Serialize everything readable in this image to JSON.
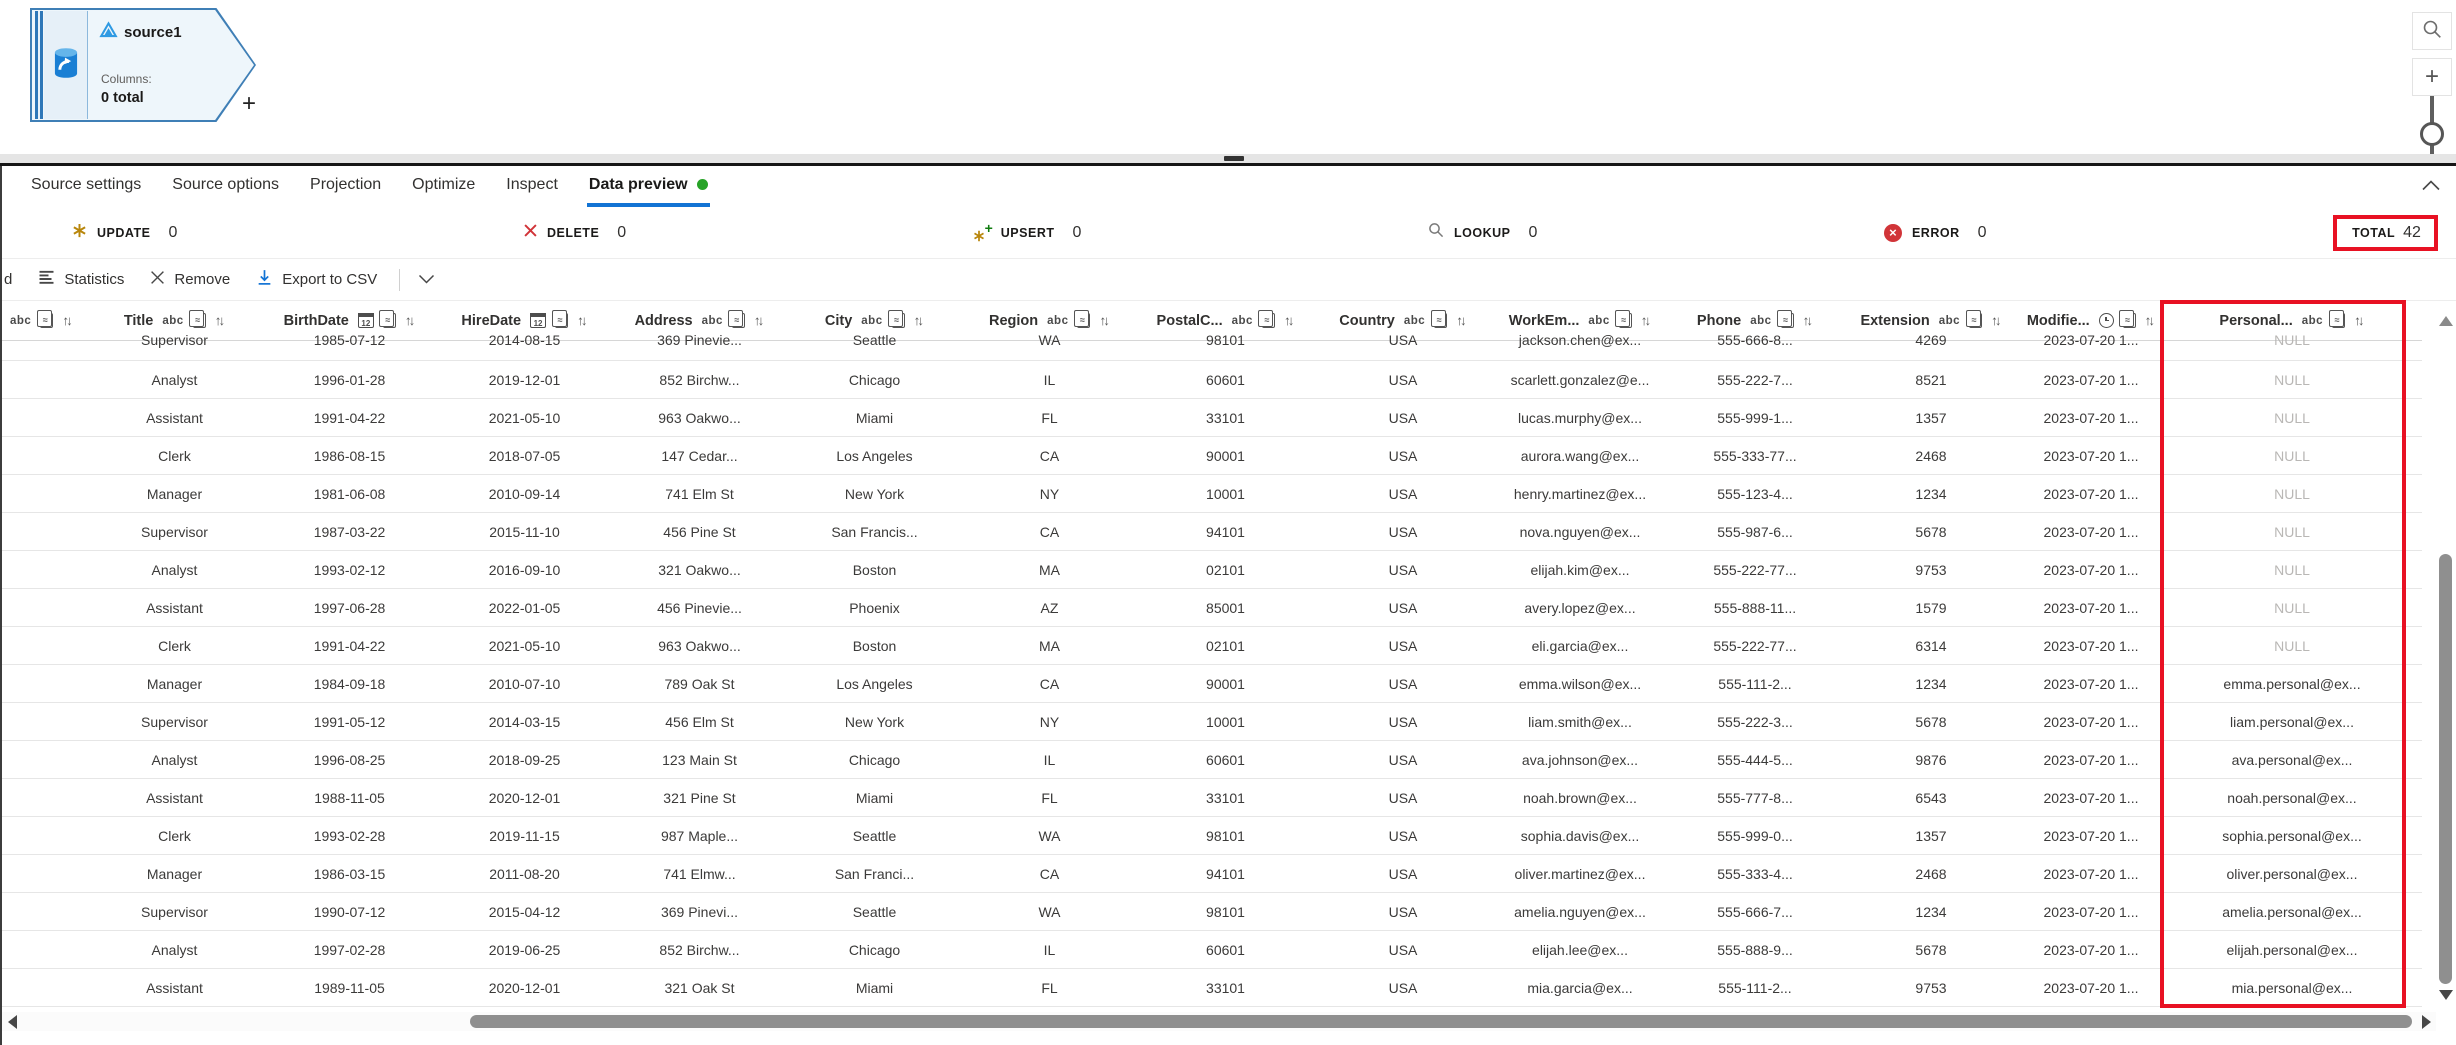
{
  "canvas": {
    "node": {
      "title": "source1",
      "columns_label": "Columns:",
      "columns_total": "0 total",
      "add_button": "+"
    }
  },
  "tabs": {
    "items": [
      {
        "label": "Source settings",
        "active": false
      },
      {
        "label": "Source options",
        "active": false
      },
      {
        "label": "Projection",
        "active": false
      },
      {
        "label": "Optimize",
        "active": false
      },
      {
        "label": "Inspect",
        "active": false
      },
      {
        "label": "Data preview",
        "active": true,
        "has_status_dot": true
      }
    ]
  },
  "stats": {
    "items": [
      {
        "icon": "update-asterisk-icon",
        "label": "UPDATE",
        "value": "0"
      },
      {
        "icon": "delete-x-icon",
        "label": "DELETE",
        "value": "0"
      },
      {
        "icon": "upsert-asterisk-plus-icon",
        "label": "UPSERT",
        "value": "0"
      },
      {
        "icon": "lookup-magnifier-icon",
        "label": "LOOKUP",
        "value": "0"
      },
      {
        "icon": "error-circle-icon",
        "label": "ERROR",
        "value": "0"
      }
    ],
    "total": {
      "label": "TOTAL",
      "value": "42",
      "annotated": true
    }
  },
  "toolbar": {
    "clipped_text": "d",
    "statistics_label": "Statistics",
    "remove_label": "Remove",
    "export_label": "Export to CSV"
  },
  "table": {
    "columns": [
      {
        "name": "",
        "type": "string"
      },
      {
        "name": "Title",
        "type": "string"
      },
      {
        "name": "BirthDate",
        "type": "date"
      },
      {
        "name": "HireDate",
        "type": "date"
      },
      {
        "name": "Address",
        "type": "string"
      },
      {
        "name": "City",
        "type": "string"
      },
      {
        "name": "Region",
        "type": "string"
      },
      {
        "name": "PostalC...",
        "type": "string"
      },
      {
        "name": "Country",
        "type": "string"
      },
      {
        "name": "WorkEm...",
        "type": "string"
      },
      {
        "name": "Phone",
        "type": "string"
      },
      {
        "name": "Extension",
        "type": "string"
      },
      {
        "name": "Modifie...",
        "type": "timestamp"
      },
      {
        "name": "Personal...",
        "type": "string",
        "annotated": true
      }
    ],
    "rows": [
      [
        "",
        "Supervisor",
        "1985-07-12",
        "2014-08-15",
        "369 Pinevie...",
        "Seattle",
        "WA",
        "98101",
        "USA",
        "jackson.chen@ex...",
        "555-666-8...",
        "4269",
        "2023-07-20 1...",
        "NULL"
      ],
      [
        "",
        "Analyst",
        "1996-01-28",
        "2019-12-01",
        "852 Birchw...",
        "Chicago",
        "IL",
        "60601",
        "USA",
        "scarlett.gonzalez@e...",
        "555-222-7...",
        "8521",
        "2023-07-20 1...",
        "NULL"
      ],
      [
        "",
        "Assistant",
        "1991-04-22",
        "2021-05-10",
        "963 Oakwo...",
        "Miami",
        "FL",
        "33101",
        "USA",
        "lucas.murphy@ex...",
        "555-999-1...",
        "1357",
        "2023-07-20 1...",
        "NULL"
      ],
      [
        "",
        "Clerk",
        "1986-08-15",
        "2018-07-05",
        "147 Cedar...",
        "Los Angeles",
        "CA",
        "90001",
        "USA",
        "aurora.wang@ex...",
        "555-333-77...",
        "2468",
        "2023-07-20 1...",
        "NULL"
      ],
      [
        "",
        "Manager",
        "1981-06-08",
        "2010-09-14",
        "741 Elm St",
        "New York",
        "NY",
        "10001",
        "USA",
        "henry.martinez@ex...",
        "555-123-4...",
        "1234",
        "2023-07-20 1...",
        "NULL"
      ],
      [
        "",
        "Supervisor",
        "1987-03-22",
        "2015-11-10",
        "456 Pine St",
        "San Francis...",
        "CA",
        "94101",
        "USA",
        "nova.nguyen@ex...",
        "555-987-6...",
        "5678",
        "2023-07-20 1...",
        "NULL"
      ],
      [
        "",
        "Analyst",
        "1993-02-12",
        "2016-09-10",
        "321 Oakwo...",
        "Boston",
        "MA",
        "02101",
        "USA",
        "elijah.kim@ex...",
        "555-222-77...",
        "9753",
        "2023-07-20 1...",
        "NULL"
      ],
      [
        "",
        "Assistant",
        "1997-06-28",
        "2022-01-05",
        "456 Pinevie...",
        "Phoenix",
        "AZ",
        "85001",
        "USA",
        "avery.lopez@ex...",
        "555-888-11...",
        "1579",
        "2023-07-20 1...",
        "NULL"
      ],
      [
        "",
        "Clerk",
        "1991-04-22",
        "2021-05-10",
        "963 Oakwo...",
        "Boston",
        "MA",
        "02101",
        "USA",
        "eli.garcia@ex...",
        "555-222-77...",
        "6314",
        "2023-07-20 1...",
        "NULL"
      ],
      [
        "",
        "Manager",
        "1984-09-18",
        "2010-07-10",
        "789 Oak St",
        "Los Angeles",
        "CA",
        "90001",
        "USA",
        "emma.wilson@ex...",
        "555-111-2...",
        "1234",
        "2023-07-20 1...",
        "emma.personal@ex..."
      ],
      [
        "",
        "Supervisor",
        "1991-05-12",
        "2014-03-15",
        "456 Elm St",
        "New York",
        "NY",
        "10001",
        "USA",
        "liam.smith@ex...",
        "555-222-3...",
        "5678",
        "2023-07-20 1...",
        "liam.personal@ex..."
      ],
      [
        "",
        "Analyst",
        "1996-08-25",
        "2018-09-25",
        "123 Main St",
        "Chicago",
        "IL",
        "60601",
        "USA",
        "ava.johnson@ex...",
        "555-444-5...",
        "9876",
        "2023-07-20 1...",
        "ava.personal@ex..."
      ],
      [
        "",
        "Assistant",
        "1988-11-05",
        "2020-12-01",
        "321 Pine St",
        "Miami",
        "FL",
        "33101",
        "USA",
        "noah.brown@ex...",
        "555-777-8...",
        "6543",
        "2023-07-20 1...",
        "noah.personal@ex..."
      ],
      [
        "",
        "Clerk",
        "1993-02-28",
        "2019-11-15",
        "987 Maple...",
        "Seattle",
        "WA",
        "98101",
        "USA",
        "sophia.davis@ex...",
        "555-999-0...",
        "1357",
        "2023-07-20 1...",
        "sophia.personal@ex..."
      ],
      [
        "",
        "Manager",
        "1986-03-15",
        "2011-08-20",
        "741 Elmw...",
        "San Franci...",
        "CA",
        "94101",
        "USA",
        "oliver.martinez@ex...",
        "555-333-4...",
        "2468",
        "2023-07-20 1...",
        "oliver.personal@ex..."
      ],
      [
        "",
        "Supervisor",
        "1990-07-12",
        "2015-04-12",
        "369 Pinevi...",
        "Seattle",
        "WA",
        "98101",
        "USA",
        "amelia.nguyen@ex...",
        "555-666-7...",
        "1234",
        "2023-07-20 1...",
        "amelia.personal@ex..."
      ],
      [
        "",
        "Analyst",
        "1997-02-28",
        "2019-06-25",
        "852 Birchw...",
        "Chicago",
        "IL",
        "60601",
        "USA",
        "elijah.lee@ex...",
        "555-888-9...",
        "5678",
        "2023-07-20 1...",
        "elijah.personal@ex..."
      ],
      [
        "",
        "Assistant",
        "1989-11-05",
        "2020-12-01",
        "321 Oak St",
        "Miami",
        "FL",
        "33101",
        "USA",
        "mia.garcia@ex...",
        "555-111-2...",
        "9753",
        "2023-07-20 1...",
        "mia.personal@ex..."
      ]
    ]
  },
  "colors": {
    "accent": "#1273d4",
    "annotation_red": "#e81123",
    "status_dot_green": "#27a327",
    "error_red": "#d13438",
    "update_gold": "#b8860b",
    "upsert_green": "#107c10",
    "node_border_blue": "#3f7fb6",
    "node_fill": "#eef6fb",
    "null_text": "#b9b7b5"
  }
}
